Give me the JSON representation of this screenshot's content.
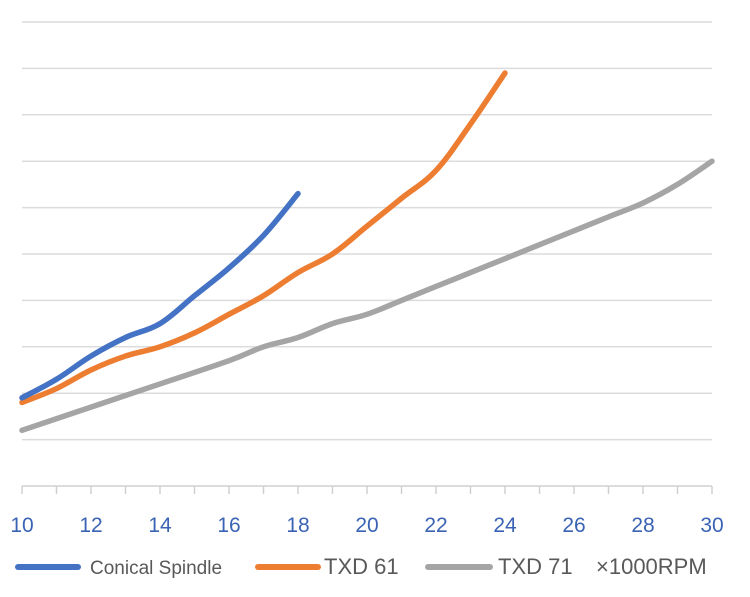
{
  "chart_data": {
    "type": "line",
    "title": "",
    "xlabel": "",
    "ylabel": "",
    "xlim": [
      10,
      30
    ],
    "ylim": [
      0,
      10
    ],
    "y_gridlines": [
      0,
      1,
      2,
      3,
      4,
      5,
      6,
      7,
      8,
      9,
      10
    ],
    "grid": true,
    "legend_position": "bottom",
    "x_ticks": [
      "10",
      "12",
      "14",
      "16",
      "18",
      "20",
      "22",
      "24",
      "26",
      "28",
      "30"
    ],
    "series": [
      {
        "name": "Conical Spindle",
        "color": "#4472C4",
        "points": [
          [
            10,
            1.9
          ],
          [
            11,
            2.3
          ],
          [
            12,
            2.8
          ],
          [
            13,
            3.2
          ],
          [
            14,
            3.5
          ],
          [
            15,
            4.1
          ],
          [
            16,
            4.7
          ],
          [
            17,
            5.4
          ],
          [
            18,
            6.3
          ]
        ]
      },
      {
        "name": "TXD 61",
        "color": "#ED7D31",
        "points": [
          [
            10,
            1.8
          ],
          [
            11,
            2.1
          ],
          [
            12,
            2.5
          ],
          [
            13,
            2.8
          ],
          [
            14,
            3.0
          ],
          [
            15,
            3.3
          ],
          [
            16,
            3.7
          ],
          [
            17,
            4.1
          ],
          [
            18,
            4.6
          ],
          [
            19,
            5.0
          ],
          [
            20,
            5.6
          ],
          [
            21,
            6.2
          ],
          [
            22,
            6.8
          ],
          [
            23,
            7.8
          ],
          [
            24,
            8.9
          ]
        ]
      },
      {
        "name": "TXD 71",
        "color": "#A5A5A5",
        "points": [
          [
            10,
            1.2
          ],
          [
            12,
            1.7
          ],
          [
            14,
            2.2
          ],
          [
            16,
            2.7
          ],
          [
            17,
            3.0
          ],
          [
            18,
            3.2
          ],
          [
            19,
            3.5
          ],
          [
            20,
            3.7
          ],
          [
            21,
            4.0
          ],
          [
            22,
            4.3
          ],
          [
            23,
            4.6
          ],
          [
            24,
            4.9
          ],
          [
            25,
            5.2
          ],
          [
            26,
            5.5
          ],
          [
            27,
            5.8
          ],
          [
            28,
            6.1
          ],
          [
            29,
            6.5
          ],
          [
            30,
            7.0
          ]
        ]
      }
    ],
    "legend_suffix": "×1000RPM"
  }
}
